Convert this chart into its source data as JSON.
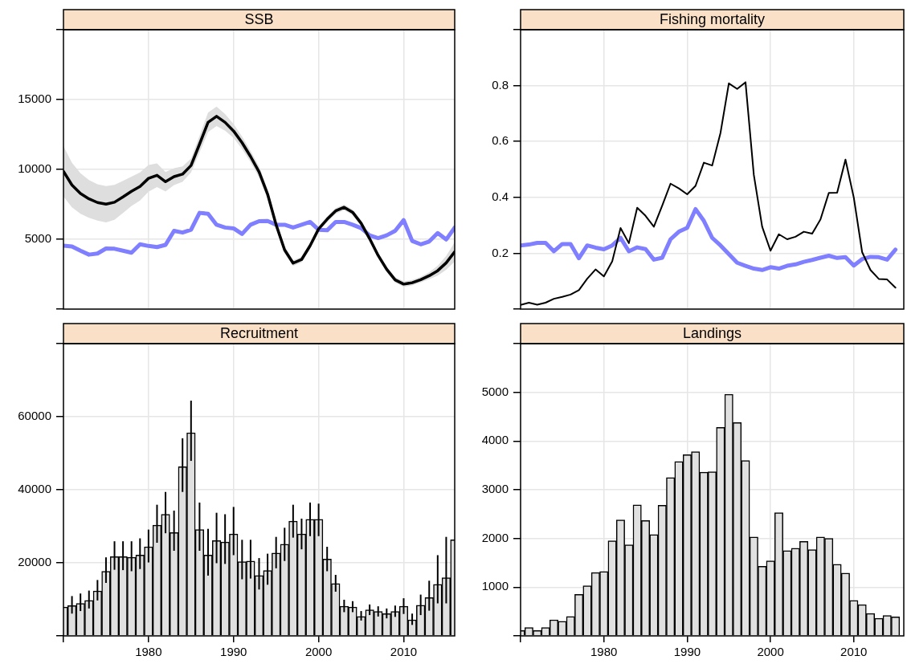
{
  "chart_data": [
    {
      "type": "line",
      "title": "SSB",
      "x": [
        1970,
        1971,
        1972,
        1973,
        1974,
        1975,
        1976,
        1977,
        1978,
        1979,
        1980,
        1981,
        1982,
        1983,
        1984,
        1985,
        1986,
        1987,
        1988,
        1989,
        1990,
        1991,
        1992,
        1993,
        1994,
        1995,
        1996,
        1997,
        1998,
        1999,
        2000,
        2001,
        2002,
        2003,
        2004,
        2005,
        2006,
        2007,
        2008,
        2009,
        2010,
        2011,
        2012,
        2013,
        2014,
        2015,
        2016
      ],
      "series": [
        {
          "color": "#000000",
          "values": [
            9860,
            8880,
            8270,
            7890,
            7630,
            7510,
            7650,
            8030,
            8430,
            8780,
            9360,
            9580,
            9120,
            9480,
            9660,
            10280,
            11810,
            13370,
            13800,
            13370,
            12750,
            11910,
            10920,
            9820,
            8230,
            6040,
            4240,
            3290,
            3550,
            4540,
            5740,
            6430,
            7030,
            7290,
            6930,
            6140,
            5040,
            3840,
            2850,
            2090,
            1790,
            1890,
            2110,
            2390,
            2750,
            3310,
            4100
          ],
          "lower": [
            8060,
            7280,
            6820,
            6540,
            6330,
            6210,
            6400,
            6880,
            7380,
            7780,
            8410,
            8730,
            8420,
            8880,
            9110,
            9780,
            11210,
            12670,
            13100,
            12770,
            12250,
            11460,
            10520,
            9420,
            7880,
            5740,
            3990,
            3090,
            3350,
            4340,
            5540,
            6230,
            6830,
            7090,
            6730,
            5940,
            4840,
            3640,
            2650,
            1890,
            1590,
            1690,
            1910,
            2140,
            2400,
            2810,
            3400
          ],
          "upper": [
            11660,
            10480,
            9720,
            9240,
            8930,
            8810,
            8900,
            9180,
            9480,
            9780,
            10310,
            10430,
            9820,
            10080,
            10210,
            10780,
            12410,
            14070,
            14500,
            13970,
            13250,
            12360,
            11320,
            10220,
            8580,
            6340,
            4490,
            3490,
            3750,
            4740,
            5940,
            6630,
            7230,
            7490,
            7130,
            6340,
            5240,
            4040,
            3050,
            2290,
            1990,
            2090,
            2310,
            2640,
            3100,
            3810,
            4800
          ]
        },
        {
          "color": "#7f7fff",
          "values": [
            4540,
            4480,
            4180,
            3900,
            3980,
            4340,
            4320,
            4180,
            4040,
            4640,
            4520,
            4440,
            4600,
            5600,
            5480,
            5680,
            6890,
            6830,
            6040,
            5840,
            5780,
            5380,
            6040,
            6290,
            6310,
            6040,
            6040,
            5840,
            6040,
            6240,
            5680,
            5640,
            6240,
            6240,
            6040,
            5800,
            5280,
            5080,
            5280,
            5600,
            6370,
            4880,
            4640,
            4840,
            5440,
            4980,
            5840
          ]
        }
      ],
      "xlim": [
        1970,
        2016
      ],
      "xticks": [
        1980,
        1990,
        2000,
        2010
      ],
      "ylim": [
        0,
        20000
      ],
      "yticks": [
        {
          "value": 0,
          "label": null
        },
        5000,
        10000,
        15000,
        {
          "value": 20000,
          "label": null
        }
      ],
      "grid": true,
      "tick_labels": "y"
    },
    {
      "type": "line",
      "title": "Fishing mortality",
      "x": [
        1970,
        1971,
        1972,
        1973,
        1974,
        1975,
        1976,
        1977,
        1978,
        1979,
        1980,
        1981,
        1982,
        1983,
        1984,
        1985,
        1986,
        1987,
        1988,
        1989,
        1990,
        1991,
        1992,
        1993,
        1994,
        1995,
        1996,
        1997,
        1998,
        1999,
        2000,
        2001,
        2002,
        2003,
        2004,
        2005,
        2006,
        2007,
        2008,
        2009,
        2010,
        2011,
        2012,
        2013,
        2014,
        2015
      ],
      "series": [
        {
          "color": "#000000",
          "values": [
            0.015,
            0.023,
            0.016,
            0.023,
            0.037,
            0.044,
            0.052,
            0.068,
            0.109,
            0.142,
            0.117,
            0.171,
            0.29,
            0.236,
            0.363,
            0.334,
            0.295,
            0.37,
            0.449,
            0.432,
            0.411,
            0.441,
            0.524,
            0.514,
            0.631,
            0.808,
            0.788,
            0.812,
            0.48,
            0.295,
            0.209,
            0.268,
            0.25,
            0.259,
            0.277,
            0.27,
            0.321,
            0.416,
            0.417,
            0.535,
            0.399,
            0.204,
            0.14,
            0.108,
            0.106,
            0.077
          ]
        },
        {
          "color": "#7f7fff",
          "values": [
            0.228,
            0.231,
            0.237,
            0.237,
            0.207,
            0.233,
            0.233,
            0.182,
            0.228,
            0.22,
            0.214,
            0.228,
            0.255,
            0.207,
            0.221,
            0.215,
            0.177,
            0.184,
            0.25,
            0.277,
            0.291,
            0.358,
            0.316,
            0.255,
            0.228,
            0.197,
            0.166,
            0.155,
            0.145,
            0.14,
            0.15,
            0.145,
            0.155,
            0.16,
            0.169,
            0.176,
            0.184,
            0.191,
            0.183,
            0.186,
            0.156,
            0.179,
            0.187,
            0.186,
            0.177,
            0.213
          ]
        }
      ],
      "xlim": [
        1970,
        2016
      ],
      "xticks": [
        1980,
        1990,
        2000,
        2010
      ],
      "ylim": [
        0,
        1
      ],
      "yticks": [
        {
          "value": 0,
          "label": null
        },
        0.2,
        0.4,
        0.6,
        0.8,
        {
          "value": 1,
          "label": null
        }
      ],
      "grid": true,
      "tick_labels": "y"
    },
    {
      "type": "bar",
      "title": "Recruitment",
      "x": [
        1970,
        1971,
        1972,
        1973,
        1974,
        1975,
        1976,
        1977,
        1978,
        1979,
        1980,
        1981,
        1982,
        1983,
        1984,
        1985,
        1986,
        1987,
        1988,
        1989,
        1990,
        1991,
        1992,
        1993,
        1994,
        1995,
        1996,
        1997,
        1998,
        1999,
        2000,
        2001,
        2002,
        2003,
        2004,
        2005,
        2006,
        2007,
        2008,
        2009,
        2010,
        2011,
        2012,
        2013,
        2014,
        2015,
        2016
      ],
      "values": [
        7900,
        8300,
        8900,
        9700,
        12300,
        17700,
        21700,
        21700,
        21500,
        22100,
        24400,
        30300,
        33300,
        28300,
        46300,
        55600,
        29100,
        22100,
        26100,
        25700,
        27900,
        20300,
        20500,
        16500,
        17900,
        22700,
        25100,
        31400,
        27900,
        31900,
        31900,
        21000,
        14300,
        8100,
        7900,
        5300,
        7100,
        6700,
        6100,
        6700,
        8100,
        4400,
        8400,
        10500,
        14100,
        15900,
        26300
      ],
      "errors": [
        null,
        [
          6100,
          10900
        ],
        [
          6800,
          11600
        ],
        [
          7500,
          12400
        ],
        [
          9700,
          15300
        ],
        [
          14500,
          21500
        ],
        [
          18100,
          25900
        ],
        [
          18000,
          25900
        ],
        [
          17700,
          25900
        ],
        [
          18300,
          26700
        ],
        [
          20100,
          29100
        ],
        [
          25500,
          35900
        ],
        [
          28100,
          39400
        ],
        [
          23300,
          34300
        ],
        [
          39400,
          54100
        ],
        [
          47900,
          64400
        ],
        [
          23300,
          36500
        ],
        [
          16500,
          29300
        ],
        [
          19900,
          33700
        ],
        [
          19700,
          33300
        ],
        [
          22100,
          35300
        ],
        [
          15500,
          26300
        ],
        [
          15700,
          26300
        ],
        [
          12700,
          21300
        ],
        [
          14000,
          22500
        ],
        [
          18500,
          27100
        ],
        [
          20500,
          29600
        ],
        [
          26900,
          35900
        ],
        [
          23700,
          32100
        ],
        [
          27300,
          36500
        ],
        [
          27300,
          36200
        ],
        [
          17700,
          24400
        ],
        [
          12100,
          16700
        ],
        [
          6500,
          9900
        ],
        [
          6500,
          9500
        ],
        [
          4200,
          6800
        ],
        [
          5700,
          8600
        ],
        [
          5300,
          8100
        ],
        [
          4800,
          7500
        ],
        [
          5200,
          8300
        ],
        [
          6000,
          10300
        ],
        [
          3000,
          6100
        ],
        [
          5700,
          11300
        ],
        [
          6900,
          15100
        ],
        [
          8900,
          22100
        ],
        [
          8900,
          27100
        ],
        null
      ],
      "color": "#e0e0e0",
      "xlim": [
        1970,
        2016
      ],
      "xticks": [
        {
          "value": 1970,
          "label": null
        },
        1980,
        1990,
        2000,
        2010
      ],
      "ylim": [
        0,
        80000
      ],
      "yticks": [
        {
          "value": 0,
          "label": null
        },
        20000,
        40000,
        60000,
        {
          "value": 80000,
          "label": null
        }
      ],
      "grid": true
    },
    {
      "type": "bar",
      "title": "Landings",
      "x": [
        1970,
        1971,
        1972,
        1973,
        1974,
        1975,
        1976,
        1977,
        1978,
        1979,
        1980,
        1981,
        1982,
        1983,
        1984,
        1985,
        1986,
        1987,
        1988,
        1989,
        1990,
        1991,
        1992,
        1993,
        1994,
        1995,
        1996,
        1997,
        1998,
        1999,
        2000,
        2001,
        2002,
        2003,
        2004,
        2005,
        2006,
        2007,
        2008,
        2009,
        2010,
        2011,
        2012,
        2013,
        2014,
        2015
      ],
      "values": [
        110,
        170,
        110,
        170,
        330,
        300,
        400,
        850,
        1030,
        1300,
        1320,
        1950,
        2380,
        1870,
        2690,
        2370,
        2080,
        2680,
        3250,
        3580,
        3720,
        3780,
        3360,
        3370,
        4280,
        4960,
        4380,
        3600,
        2030,
        1430,
        1540,
        2530,
        1750,
        1800,
        1940,
        1770,
        2030,
        2000,
        1470,
        1290,
        730,
        640,
        460,
        360,
        420,
        390
      ],
      "color": "#e0e0e0",
      "xlim": [
        1970,
        2016
      ],
      "xticks": [
        {
          "value": 1970,
          "label": null
        },
        1980,
        1990,
        2000,
        2010
      ],
      "ylim": [
        0,
        6000
      ],
      "yticks": [
        {
          "value": 0,
          "label": null
        },
        1000,
        2000,
        3000,
        4000,
        5000,
        {
          "value": 6000,
          "label": null
        }
      ],
      "grid": true
    }
  ]
}
